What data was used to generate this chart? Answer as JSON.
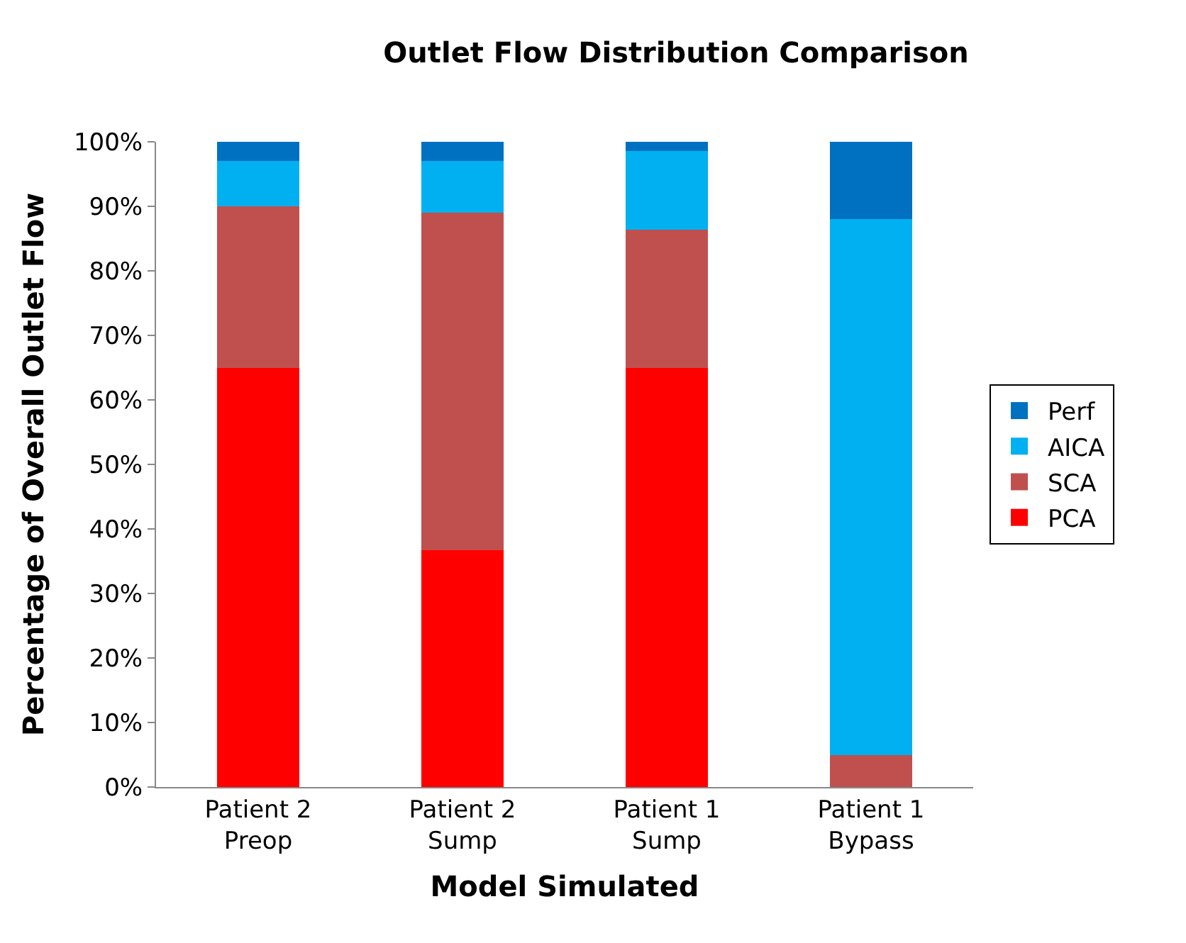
{
  "chart_data": {
    "type": "bar",
    "stacked": true,
    "title": "Outlet Flow Distribution Comparison",
    "xlabel": "Model Simulated",
    "ylabel": "Percentage of Overall Outlet Flow",
    "categories": [
      "Patient 2\nPreop",
      "Patient 2\nSump",
      "Patient 1\nSump",
      "Patient 1\nBypass"
    ],
    "series": [
      {
        "name": "PCA",
        "color": "#ff0000",
        "values": [
          65,
          36.7,
          65,
          0
        ]
      },
      {
        "name": "SCA",
        "color": "#c0504d",
        "values": [
          25,
          52.3,
          21.4,
          5
        ]
      },
      {
        "name": "AICA",
        "color": "#00b0f0",
        "values": [
          7,
          8,
          12.2,
          83
        ]
      },
      {
        "name": "Perf",
        "color": "#0070c0",
        "values": [
          3,
          3,
          1.4,
          12
        ]
      }
    ],
    "ylim": [
      0,
      100
    ],
    "yticks": [
      {
        "value": 0,
        "label": "0%"
      },
      {
        "value": 10,
        "label": "10%"
      },
      {
        "value": 20,
        "label": "20%"
      },
      {
        "value": 30,
        "label": "30%"
      },
      {
        "value": 40,
        "label": "40%"
      },
      {
        "value": 50,
        "label": "50%"
      },
      {
        "value": 60,
        "label": "60%"
      },
      {
        "value": 70,
        "label": "70%"
      },
      {
        "value": 80,
        "label": "80%"
      },
      {
        "value": 90,
        "label": "90%"
      },
      {
        "value": 100,
        "label": "100%"
      }
    ],
    "legend": "right"
  }
}
